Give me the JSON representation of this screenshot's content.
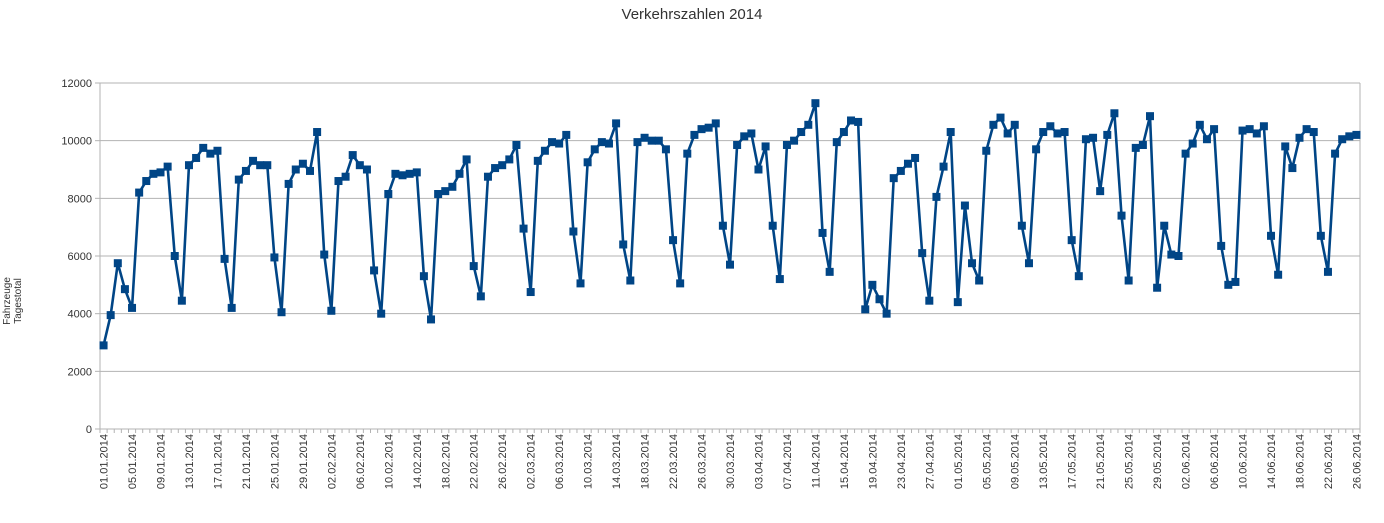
{
  "chart_data": {
    "type": "line",
    "title": "Verkehrszahlen 2014",
    "xlabel": "",
    "ylabel": "Fahrzeuge Tagestotal",
    "ylim": [
      0,
      12000
    ],
    "yticks": [
      0,
      2000,
      4000,
      6000,
      8000,
      10000,
      12000
    ],
    "grid": true,
    "legend": "none",
    "color": "#004586",
    "x_tick_labels": [
      "01.01.2014",
      "05.01.2014",
      "09.01.2014",
      "13.01.2014",
      "17.01.2014",
      "21.01.2014",
      "25.01.2014",
      "29.01.2014",
      "02.02.2014",
      "06.02.2014",
      "10.02.2014",
      "14.02.2014",
      "18.02.2014",
      "22.02.2014",
      "26.02.2014",
      "02.03.2014",
      "06.03.2014",
      "10.03.2014",
      "14.03.2014",
      "18.03.2014",
      "22.03.2014",
      "26.03.2014",
      "30.03.2014",
      "03.04.2014",
      "07.04.2014",
      "11.04.2014",
      "15.04.2014",
      "19.04.2014",
      "23.04.2014",
      "27.04.2014",
      "01.05.2014",
      "05.05.2014",
      "09.05.2014",
      "13.05.2014",
      "17.05.2014",
      "21.05.2014",
      "25.05.2014",
      "29.05.2014",
      "02.06.2014",
      "06.06.2014",
      "10.06.2014",
      "14.06.2014",
      "18.06.2014",
      "22.06.2014",
      "26.06.2014"
    ],
    "series": [
      {
        "values": [
          2900,
          3950,
          5750,
          4850,
          4200,
          8200,
          8600,
          8850,
          8900,
          9100,
          6000,
          4450,
          9150,
          9400,
          9750,
          9550,
          9650,
          5900,
          4200,
          8650,
          8950,
          9300,
          9150,
          9150,
          5950,
          4050,
          8500,
          9000,
          9200,
          8950,
          10300,
          6050,
          4100,
          8600,
          8750,
          9500,
          9150,
          9000,
          5500,
          4000,
          8150,
          8850,
          8800,
          8850,
          8900,
          5300,
          3800,
          8150,
          8250,
          8400,
          8850,
          9350,
          5650,
          4600,
          8750,
          9050,
          9150,
          9350,
          9850,
          6950,
          4750,
          9300,
          9650,
          9950,
          9900,
          10200,
          6850,
          5050,
          9250,
          9700,
          9950,
          9900,
          10600,
          6400,
          5150,
          9950,
          10100,
          10000,
          10000,
          9700,
          6550,
          5050,
          9550,
          10200,
          10400,
          10450,
          10600,
          7050,
          5700,
          9850,
          10150,
          10250,
          9000,
          9800,
          7050,
          5200,
          9850,
          10000,
          10300,
          10550,
          11300,
          6800,
          5450,
          9950,
          10300,
          10700,
          10650,
          4150,
          5000,
          4500,
          4000,
          8700,
          8950,
          9200,
          9400,
          6100,
          4450,
          8050,
          9100,
          10300,
          4400,
          7750,
          5750,
          5150,
          9650,
          10550,
          10800,
          10250,
          10550,
          7050,
          5750,
          9700,
          10300,
          10500,
          10250,
          10300,
          6550,
          5300,
          10050,
          10100,
          8250,
          10200,
          10950,
          7400,
          5150,
          9750,
          9850,
          10850,
          4900,
          7050,
          6050,
          6000,
          9550,
          9900,
          10550,
          10050,
          10400,
          6350,
          5000,
          5100,
          10350,
          10400,
          10250,
          10500,
          6700,
          5350,
          9800,
          9050,
          10100,
          10400,
          10300,
          6700,
          5450,
          9550,
          10050,
          10150,
          10200
        ]
      }
    ]
  }
}
